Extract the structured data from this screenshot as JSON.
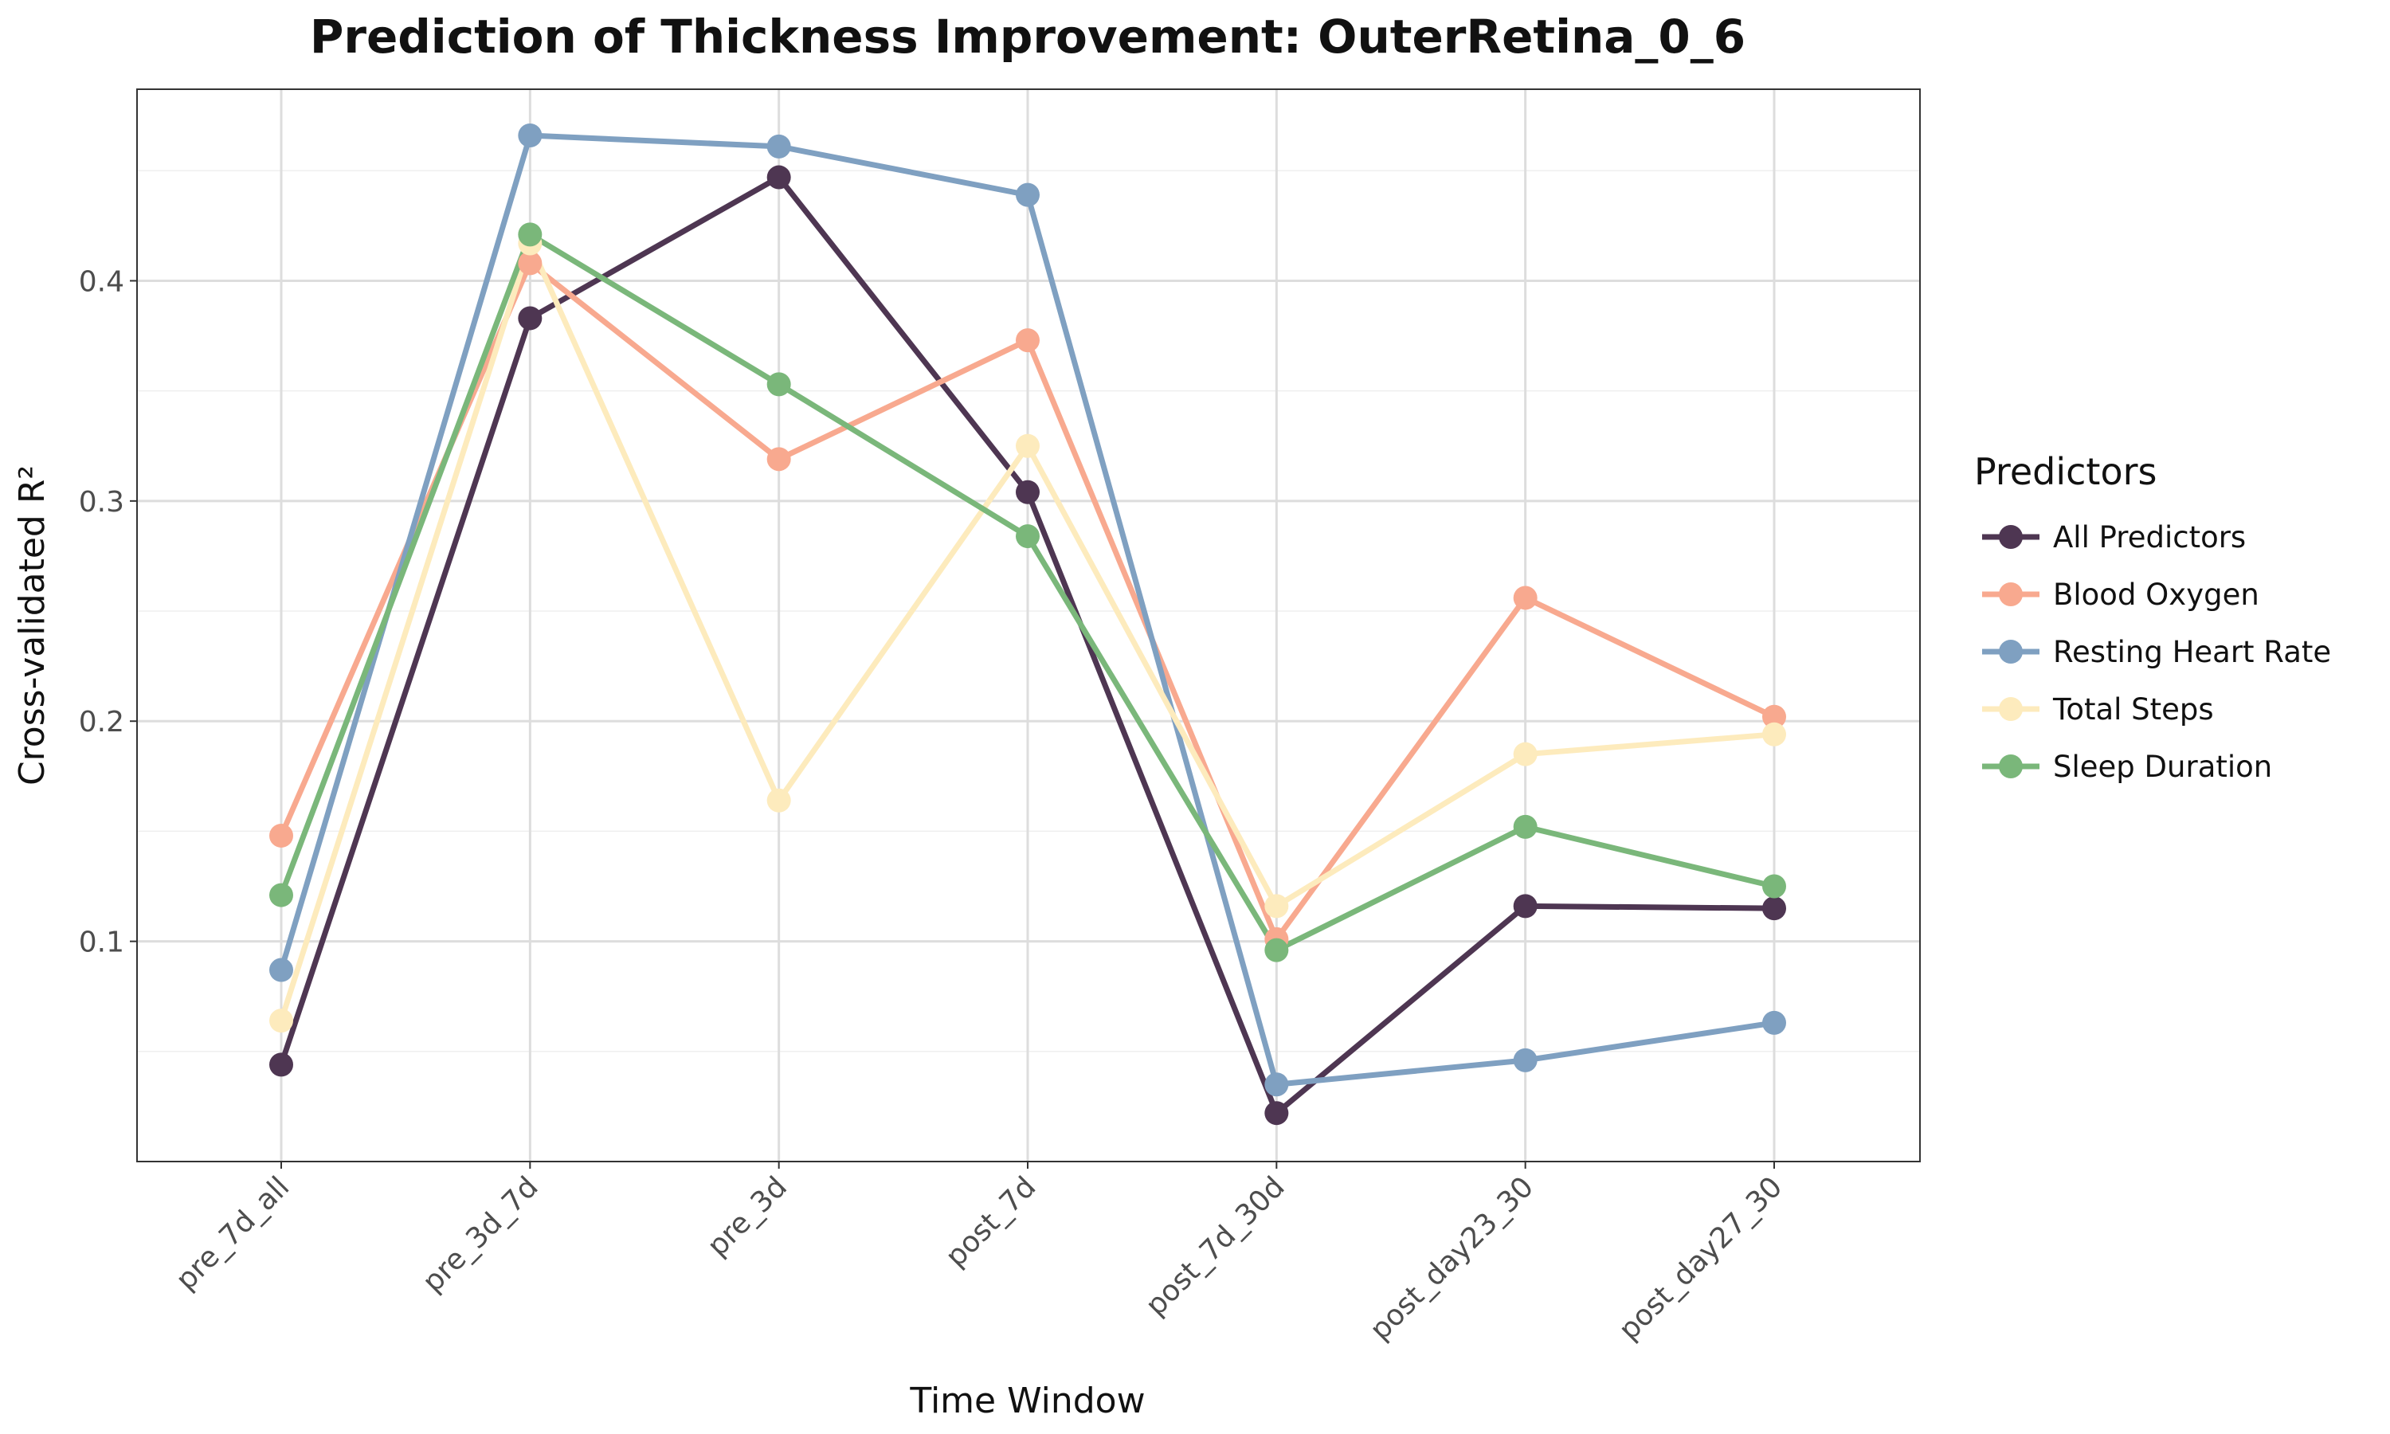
{
  "chart_data": {
    "type": "line",
    "title": "Prediction of Thickness Improvement: OuterRetina_0_6",
    "xlabel": "Time Window",
    "ylabel": "Cross-validated R²",
    "categories": [
      "pre_7d_all",
      "pre_3d_7d",
      "pre_3d",
      "post_7d",
      "post_7d_30d",
      "post_day23_30",
      "post_day27_30"
    ],
    "ylim": [
      0,
      0.487
    ],
    "yticks": [
      "0.1",
      "0.2",
      "0.3",
      "0.4"
    ],
    "grid": true,
    "legend": {
      "title": "Predictors",
      "placement": "right"
    },
    "series": [
      {
        "name": "All Predictors",
        "color": "#4e3652",
        "values": [
          0.044,
          0.383,
          0.447,
          0.304,
          0.022,
          0.116,
          0.115
        ]
      },
      {
        "name": "Blood Oxygen",
        "color": "#f8a98f",
        "values": [
          0.148,
          0.408,
          0.319,
          0.373,
          0.101,
          0.256,
          0.202
        ]
      },
      {
        "name": "Resting Heart Rate",
        "color": "#7fa0c1",
        "values": [
          0.087,
          0.466,
          0.461,
          0.439,
          0.035,
          0.046,
          0.063
        ]
      },
      {
        "name": "Total Steps",
        "color": "#fdebbd",
        "values": [
          0.064,
          0.417,
          0.164,
          0.325,
          0.116,
          0.185,
          0.194
        ]
      },
      {
        "name": "Sleep Duration",
        "color": "#7ab77a",
        "values": [
          0.121,
          0.421,
          0.353,
          0.284,
          0.096,
          0.152,
          0.125
        ]
      }
    ]
  }
}
